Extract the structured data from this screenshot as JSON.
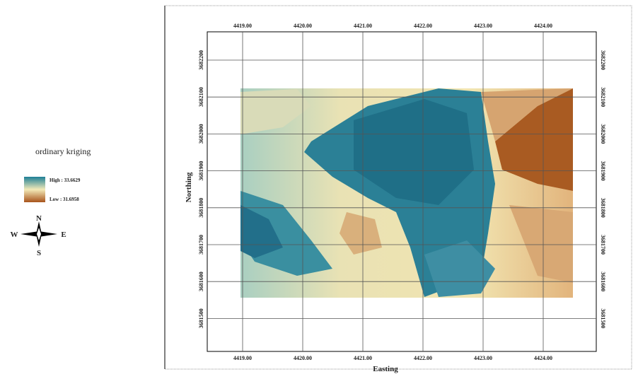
{
  "legend": {
    "title": "ordinary kriging",
    "high": "High : 33.6629",
    "low": "Low : 31.6958"
  },
  "compass": {
    "n": "N",
    "s": "S",
    "e": "E",
    "w": "W"
  },
  "grid": {
    "eastings": [
      "4419.00",
      "4420.00",
      "4421.00",
      "4422.00",
      "4423.00",
      "4424.00"
    ],
    "northings": [
      "3682200",
      "3682100",
      "3682000",
      "3681900",
      "3681800",
      "3681700",
      "3681600",
      "3681500"
    ]
  },
  "axis_labels": {
    "x": "Easting",
    "y": "Northing"
  }
}
